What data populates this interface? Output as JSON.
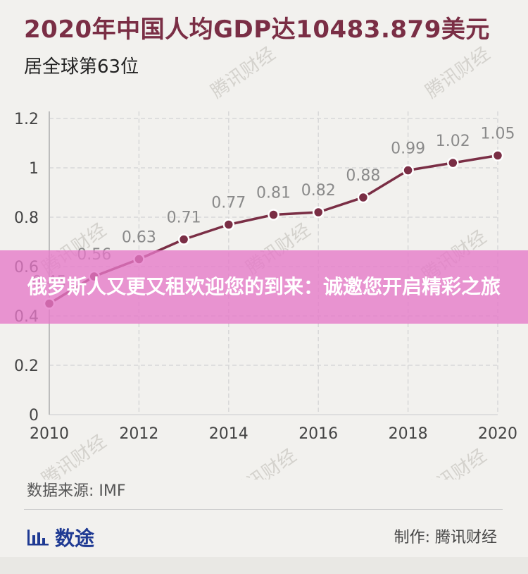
{
  "header": {
    "title": "2020年中国人均GDP达10483.879美元",
    "subtitle": "居全球第63位"
  },
  "banner": {
    "text": "俄罗斯人又更又租欢迎您的到来：诚邀您开启精彩之旅"
  },
  "footer": {
    "source": "数据来源: IMF",
    "brand": "数途",
    "credit": "制作: 腾讯财经"
  },
  "watermark": "腾讯财经",
  "colors": {
    "line": "#7a2e45",
    "title": "#7a2e45",
    "grid": "#d8d8d8",
    "brand": "#1f3a93"
  },
  "chart_data": {
    "type": "line",
    "x": [
      2010,
      2011,
      2012,
      2013,
      2014,
      2015,
      2016,
      2017,
      2018,
      2019,
      2020
    ],
    "values": [
      0.45,
      0.56,
      0.63,
      0.71,
      0.77,
      0.81,
      0.82,
      0.88,
      0.99,
      1.02,
      1.05
    ],
    "data_labels": [
      "0.45",
      "0.56",
      "0.63",
      "0.71",
      "0.77",
      "0.81",
      "0.82",
      "0.88",
      "0.99",
      "1.02",
      "1.05"
    ],
    "x_ticks": [
      "2010",
      "2012",
      "2014",
      "2016",
      "2018",
      "2020"
    ],
    "y_ticks": [
      "0",
      "0.2",
      "0.4",
      "0.6",
      "0.8",
      "1",
      "1.2"
    ],
    "ylim": [
      0,
      1.2
    ],
    "xlim": [
      2010,
      2020
    ],
    "grid": true
  }
}
